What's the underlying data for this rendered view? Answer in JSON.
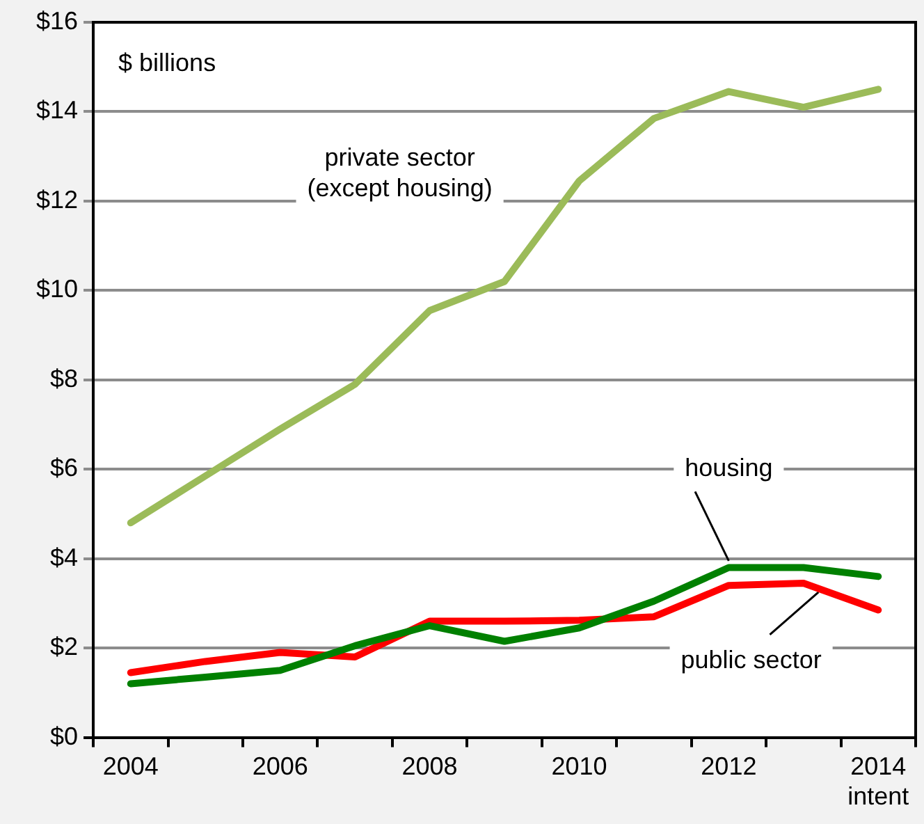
{
  "chart_data": {
    "type": "line",
    "annotations": [
      "$ billions"
    ],
    "categories": [
      "2004",
      null,
      "2006",
      null,
      "2008",
      null,
      "2010",
      null,
      "2012",
      null,
      "2014\nintent"
    ],
    "series": [
      {
        "name": "private sector\n(except housing)",
        "color": "#9bbb59",
        "values": [
          4.8,
          5.85,
          6.9,
          7.9,
          9.55,
          10.2,
          12.45,
          13.85,
          14.45,
          14.1,
          14.5
        ]
      },
      {
        "name": "housing",
        "color": "#008000",
        "values": [
          1.2,
          1.35,
          1.5,
          2.05,
          2.5,
          2.15,
          2.45,
          3.05,
          3.8,
          3.8,
          3.6
        ]
      },
      {
        "name": "public sector",
        "color": "#ff0000",
        "values": [
          1.45,
          1.7,
          1.9,
          1.8,
          2.6,
          2.6,
          2.62,
          2.7,
          3.4,
          3.45,
          2.85
        ]
      }
    ],
    "ylim": [
      0,
      16
    ],
    "yticks": [
      {
        "value": 0,
        "label": "$0"
      },
      {
        "value": 2,
        "label": "$2"
      },
      {
        "value": 4,
        "label": "$4"
      },
      {
        "value": 6,
        "label": "$6"
      },
      {
        "value": 8,
        "label": "$8"
      },
      {
        "value": 10,
        "label": "$10"
      },
      {
        "value": 12,
        "label": "$12"
      },
      {
        "value": 14,
        "label": "$14"
      },
      {
        "value": 16,
        "label": "$16"
      }
    ],
    "grid": "y",
    "legend": false,
    "marker": "none",
    "line_style": "solid"
  }
}
